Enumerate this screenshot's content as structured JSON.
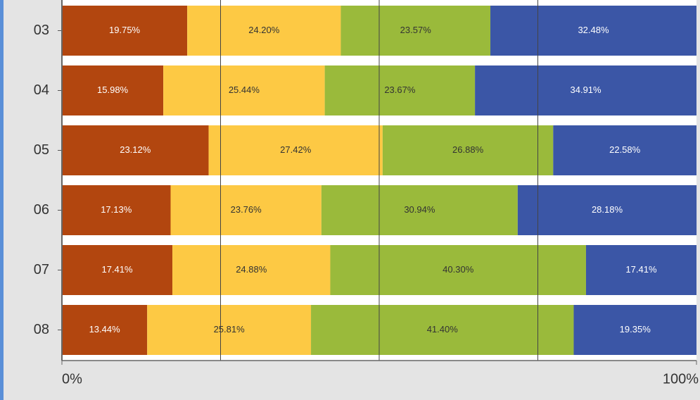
{
  "chart_data": {
    "type": "stacked-barh",
    "categories": [
      "03",
      "04",
      "05",
      "06",
      "07",
      "08"
    ],
    "series": [
      {
        "color": "#b2460f",
        "label_color": "#ffffff",
        "values": [
          19.75,
          15.98,
          23.12,
          17.13,
          17.41,
          13.44
        ],
        "value_labels": [
          "19.75%",
          "15.98%",
          "23.12%",
          "17.13%",
          "17.41%",
          "13.44%"
        ]
      },
      {
        "color": "#fdc944",
        "label_color": "#333333",
        "values": [
          24.2,
          25.44,
          27.42,
          23.76,
          24.88,
          25.81
        ],
        "value_labels": [
          "24.20%",
          "25.44%",
          "27.42%",
          "23.76%",
          "24.88%",
          "25.81%"
        ]
      },
      {
        "color": "#9aba3b",
        "label_color": "#333333",
        "values": [
          23.57,
          23.67,
          26.88,
          30.94,
          40.3,
          41.4
        ],
        "value_labels": [
          "23.57%",
          "23.67%",
          "26.88%",
          "30.94%",
          "40.30%",
          "41.40%"
        ]
      },
      {
        "color": "#3b56a6",
        "label_color": "#ffffff",
        "values": [
          32.48,
          34.91,
          22.58,
          28.18,
          17.41,
          19.35
        ],
        "value_labels": [
          "32.48%",
          "34.91%",
          "22.58%",
          "28.18%",
          "17.41%",
          "19.35%"
        ]
      }
    ],
    "xlim": [
      0,
      100
    ],
    "xticks": [
      {
        "value": 0,
        "label": "0%"
      },
      {
        "value": 100,
        "label": "100%"
      }
    ],
    "xgrid": [
      25,
      50,
      75
    ]
  }
}
